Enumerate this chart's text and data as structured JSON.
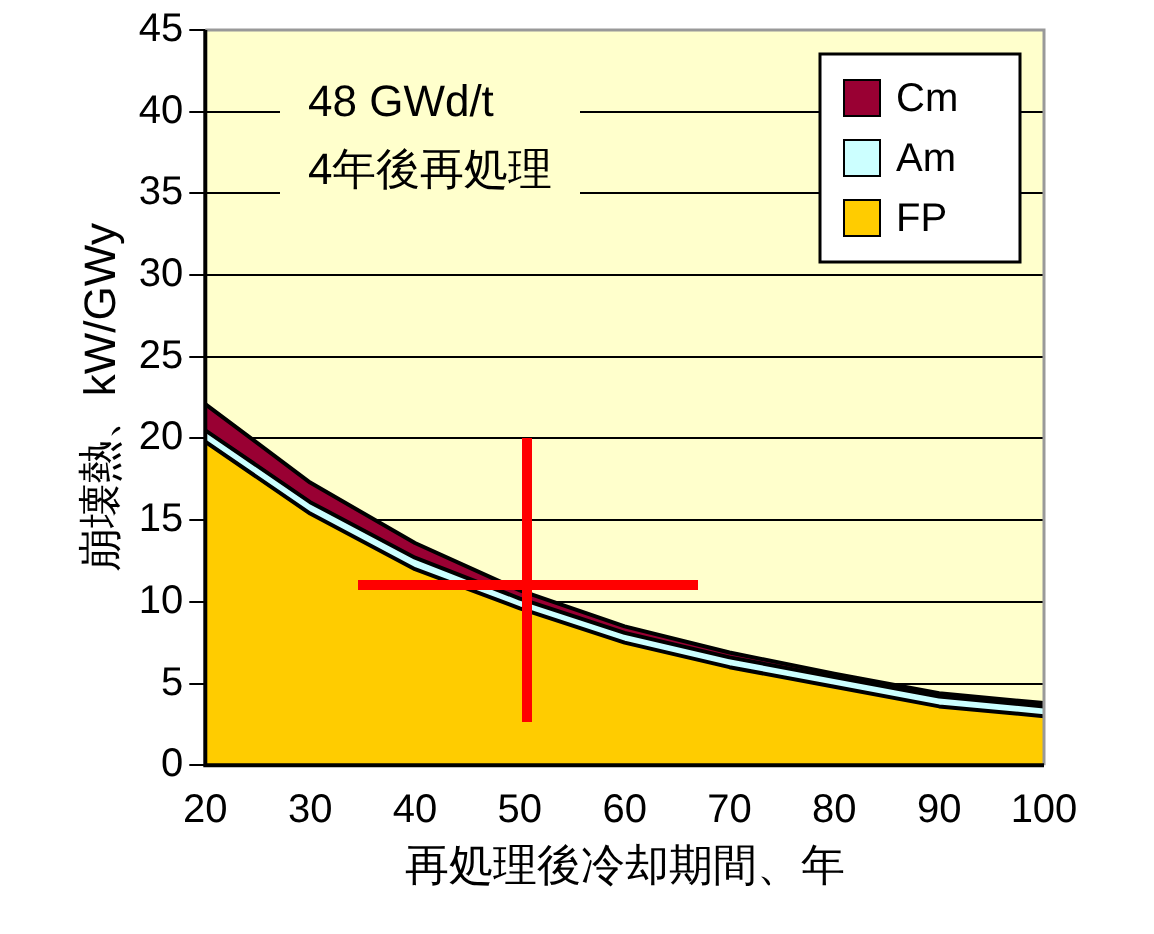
{
  "chart_data": {
    "type": "area",
    "stacked": true,
    "xlabel": "再処理後冷却期間、年",
    "ylabel": "崩壊熱、kW/GWy",
    "x": [
      20,
      30,
      40,
      50,
      60,
      70,
      80,
      90,
      100
    ],
    "series": [
      {
        "name": "FP",
        "color": "#ffcc00",
        "values": [
          19.8,
          15.4,
          12.0,
          9.6,
          7.5,
          6.0,
          4.8,
          3.6,
          3.0
        ]
      },
      {
        "name": "Am",
        "color": "#ccffff",
        "values": [
          0.7,
          0.7,
          0.7,
          0.6,
          0.6,
          0.6,
          0.6,
          0.6,
          0.6
        ]
      },
      {
        "name": "Cm",
        "color": "#990033",
        "values": [
          1.6,
          1.2,
          0.9,
          0.5,
          0.4,
          0.3,
          0.2,
          0.2,
          0.2
        ]
      }
    ],
    "xlim": [
      20,
      100
    ],
    "xticks": [
      20,
      30,
      40,
      50,
      60,
      70,
      80,
      90,
      100
    ],
    "ylim": [
      0,
      45
    ],
    "yticks": [
      0,
      5,
      10,
      15,
      20,
      25,
      30,
      35,
      40,
      45
    ],
    "grid": "y",
    "legend": "top right",
    "annotations": [
      "48 GWd/t",
      "4年後再処理"
    ]
  }
}
